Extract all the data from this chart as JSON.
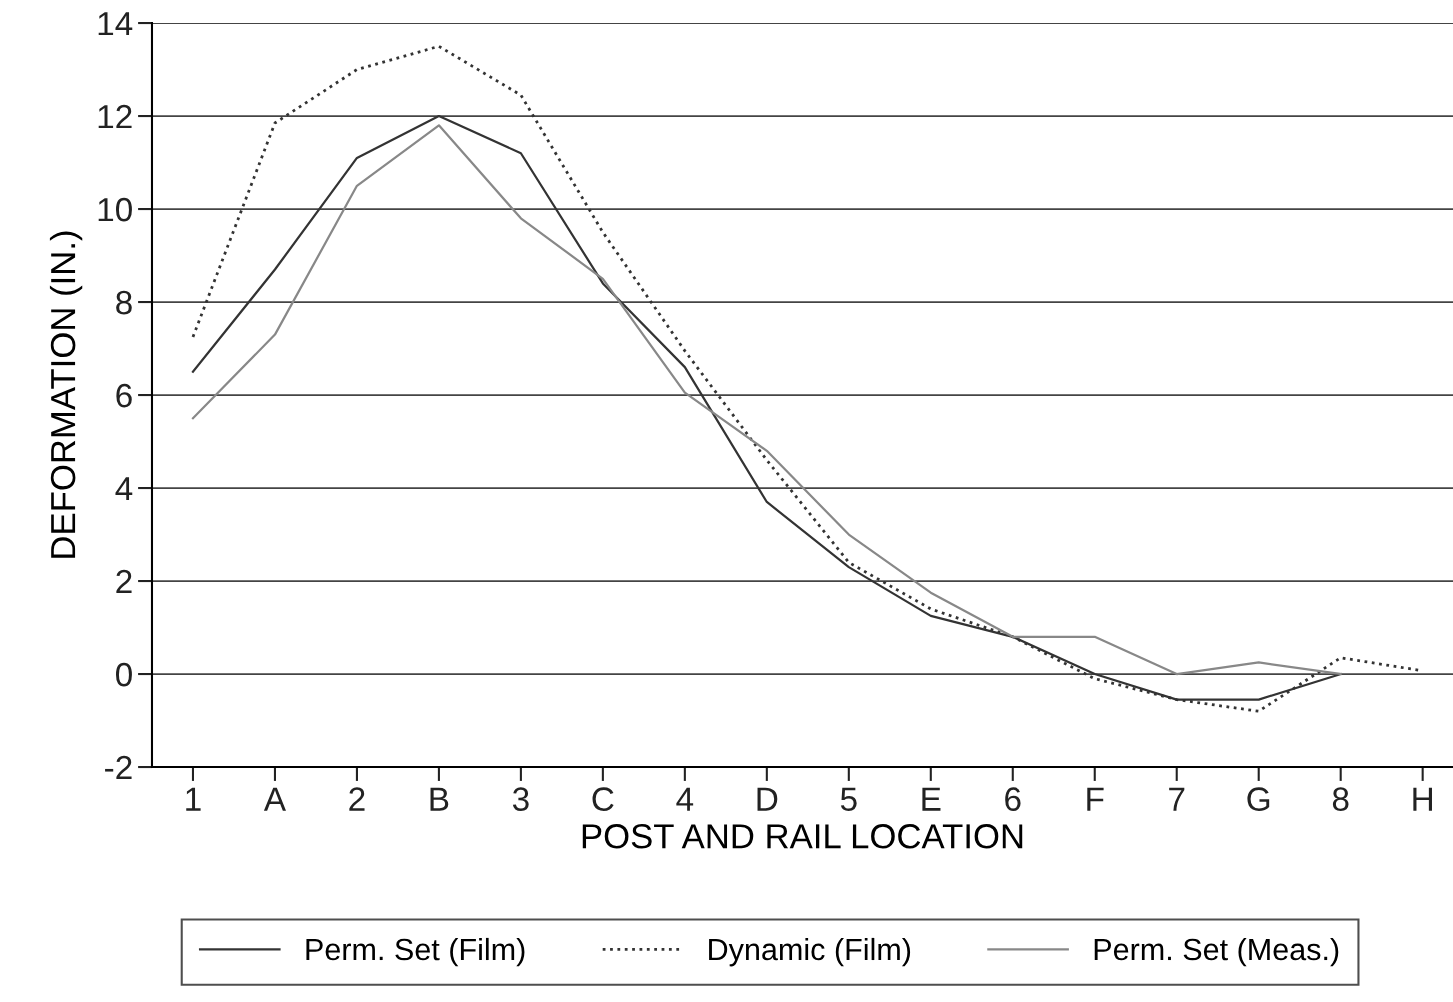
{
  "chart_data": {
    "type": "line",
    "xlabel": "POST AND RAIL LOCATION",
    "ylabel": "DEFORMATION (IN.)",
    "categories": [
      "1",
      "A",
      "2",
      "B",
      "3",
      "C",
      "4",
      "D",
      "5",
      "E",
      "6",
      "F",
      "7",
      "G",
      "8",
      "H"
    ],
    "series": [
      {
        "name": "Perm. Set (Film)",
        "color": "#333333",
        "line_style": "solid",
        "values": [
          6.5,
          8.7,
          11.1,
          12.0,
          11.2,
          8.4,
          6.6,
          3.7,
          2.3,
          1.25,
          0.8,
          0.0,
          -0.55,
          -0.55,
          0.0,
          null
        ]
      },
      {
        "name": "Dynamic (Film)",
        "color": "#333333",
        "line_style": "dotted",
        "values": [
          7.25,
          11.85,
          13.0,
          13.5,
          12.45,
          9.5,
          6.95,
          4.6,
          2.4,
          1.4,
          0.8,
          -0.1,
          -0.55,
          -0.8,
          0.35,
          0.07
        ]
      },
      {
        "name": "Perm. Set (Meas.)",
        "color": "#888888",
        "line_style": "solid",
        "values": [
          5.5,
          7.3,
          10.5,
          11.8,
          9.8,
          8.5,
          6.05,
          4.8,
          3.0,
          1.75,
          0.8,
          0.8,
          0.0,
          0.25,
          0.0,
          null
        ]
      }
    ],
    "ylim": [
      -2,
      14
    ],
    "yticks": [
      -2,
      0,
      2,
      4,
      6,
      8,
      10,
      12,
      14
    ],
    "grid": "y",
    "legend": "bottom",
    "marker": "none"
  }
}
